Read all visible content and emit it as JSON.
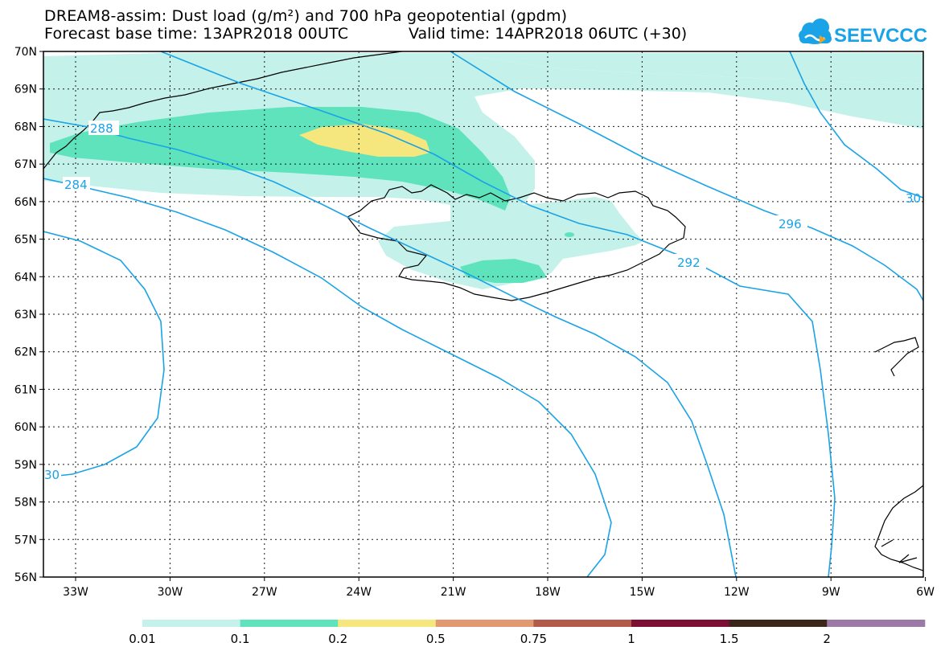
{
  "header": {
    "title": "DREAM8-assim: Dust load (g/m²) and 700 hPa geopotential (gpdm)",
    "base_time": "Forecast base time: 13APR2018 00UTC",
    "valid_time": "Valid time: 14APR2018 06UTC (+30)"
  },
  "logo": {
    "text": "SEEVCCC"
  },
  "map": {
    "lat_labels": [
      "70N",
      "69N",
      "68N",
      "67N",
      "66N",
      "65N",
      "64N",
      "63N",
      "62N",
      "61N",
      "60N",
      "59N",
      "58N",
      "57N",
      "56N"
    ],
    "lon_labels": [
      "33W",
      "30W",
      "27W",
      "24W",
      "21W",
      "18W",
      "15W",
      "12W",
      "9W",
      "6W"
    ],
    "contour_labels": [
      "288",
      "284",
      "296",
      "292",
      "30",
      "30"
    ]
  },
  "legend": {
    "colors": [
      "#c4f2ea",
      "#5ee3bd",
      "#f5e67d",
      "#e29870",
      "#b35b4a",
      "#7d0f35",
      "#3a271a",
      "#9c79a6"
    ],
    "labels": [
      "0.01",
      "0.1",
      "0.2",
      "0.5",
      "0.75",
      "1",
      "1.5",
      "2"
    ]
  }
}
